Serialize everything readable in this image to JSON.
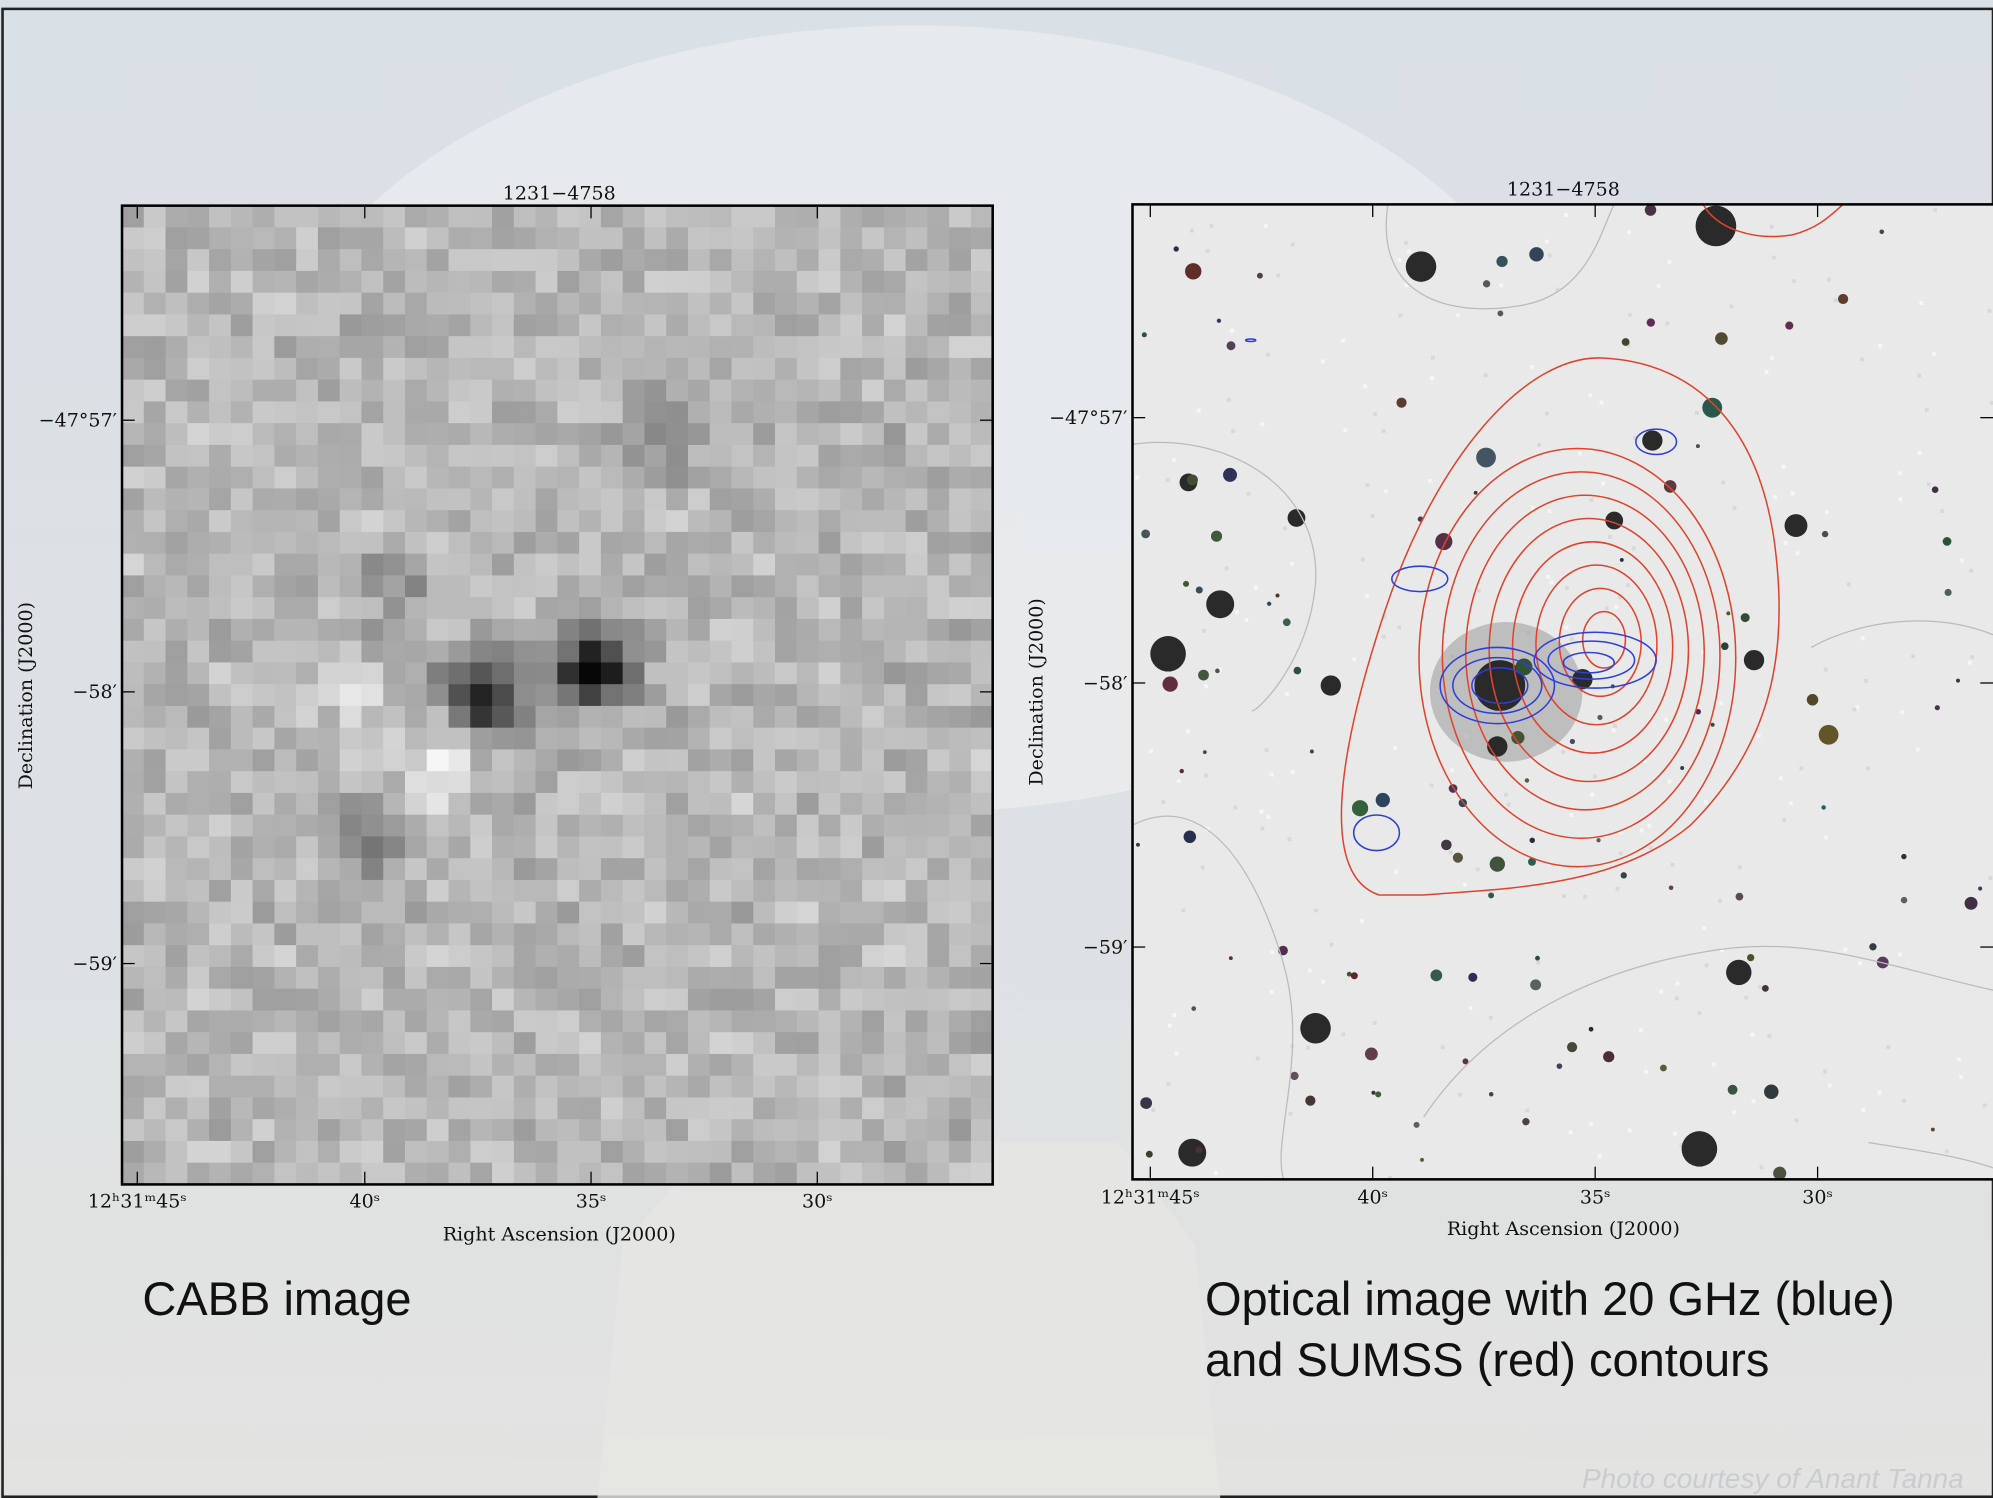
{
  "slide": {
    "panels": [
      {
        "title": "1231−4758",
        "y_ticks": [
          "−47°57′",
          "−58′",
          "−59′"
        ],
        "x_ticks": [
          "12ʰ31ᵐ45ˢ",
          "40ˢ",
          "35ˢ",
          "30ˢ"
        ],
        "x_label": "Right Ascension (J2000)",
        "y_label": "Declination (J2000)",
        "caption": [
          "CABB image"
        ]
      },
      {
        "title": "1231−4758",
        "y_ticks": [
          "−47°57′",
          "−58′",
          "−59′"
        ],
        "x_ticks": [
          "12ʰ31ᵐ45ˢ",
          "40ˢ",
          "35ˢ",
          "30ˢ"
        ],
        "x_label": "Right Ascension (J2000)",
        "y_label": "Declination (J2000)",
        "caption": [
          "Optical image with 20 GHz (blue)",
          "and SUMSS (red) contours"
        ]
      }
    ],
    "credit": "Photo courtesy of Anant Tanna"
  }
}
